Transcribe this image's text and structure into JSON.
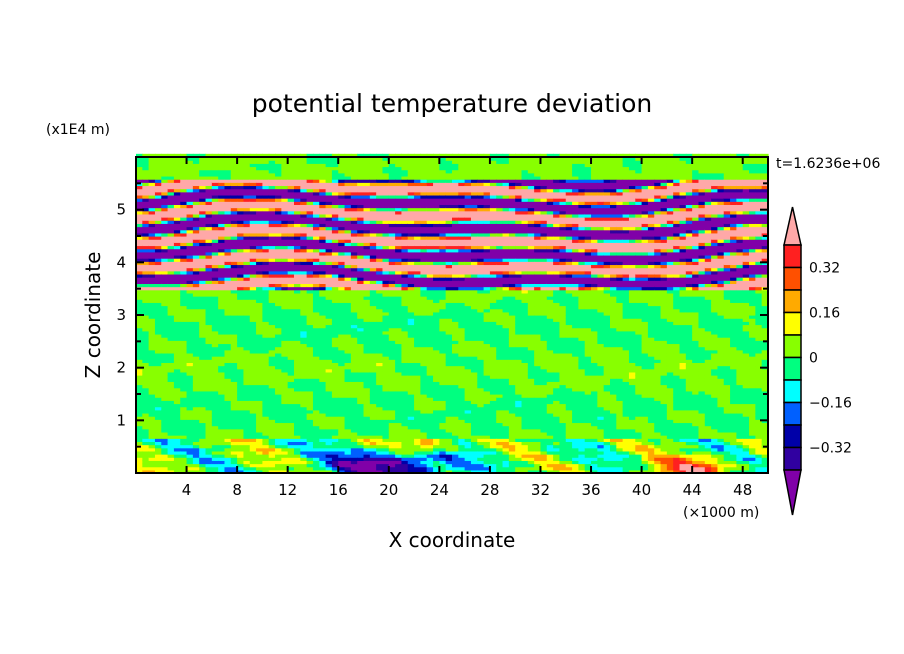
{
  "chart_data": {
    "type": "heatmap",
    "title": "potential temperature deviation",
    "xlabel": "X coordinate",
    "ylabel": "Z coordinate",
    "x_units": "(×1000 m)",
    "y_units": "(x1E4 m)",
    "time_label": "t=1.6236e+06",
    "xlim": [
      0,
      50
    ],
    "ylim": [
      0,
      6
    ],
    "x_ticks": [
      4,
      8,
      12,
      16,
      20,
      24,
      28,
      32,
      36,
      40,
      44,
      48
    ],
    "y_ticks": [
      1,
      2,
      3,
      4,
      5
    ],
    "colorbar": {
      "levels": [
        -0.4,
        -0.32,
        -0.24,
        -0.16,
        -0.08,
        0,
        0.08,
        0.16,
        0.24,
        0.32,
        0.4
      ],
      "labels": [
        "0.32",
        "0.16",
        "0",
        "−0.16",
        "−0.32"
      ],
      "label_values": [
        0.32,
        0.16,
        0,
        -0.16,
        -0.32
      ],
      "colors": [
        "#8000a8",
        "#3000a0",
        "#0000a8",
        "#0060ff",
        "#00ffff",
        "#00ff80",
        "#88ff00",
        "#ffff00",
        "#ffaa00",
        "#ff5000",
        "#ff2020",
        "#ffa8a8"
      ]
    }
  }
}
